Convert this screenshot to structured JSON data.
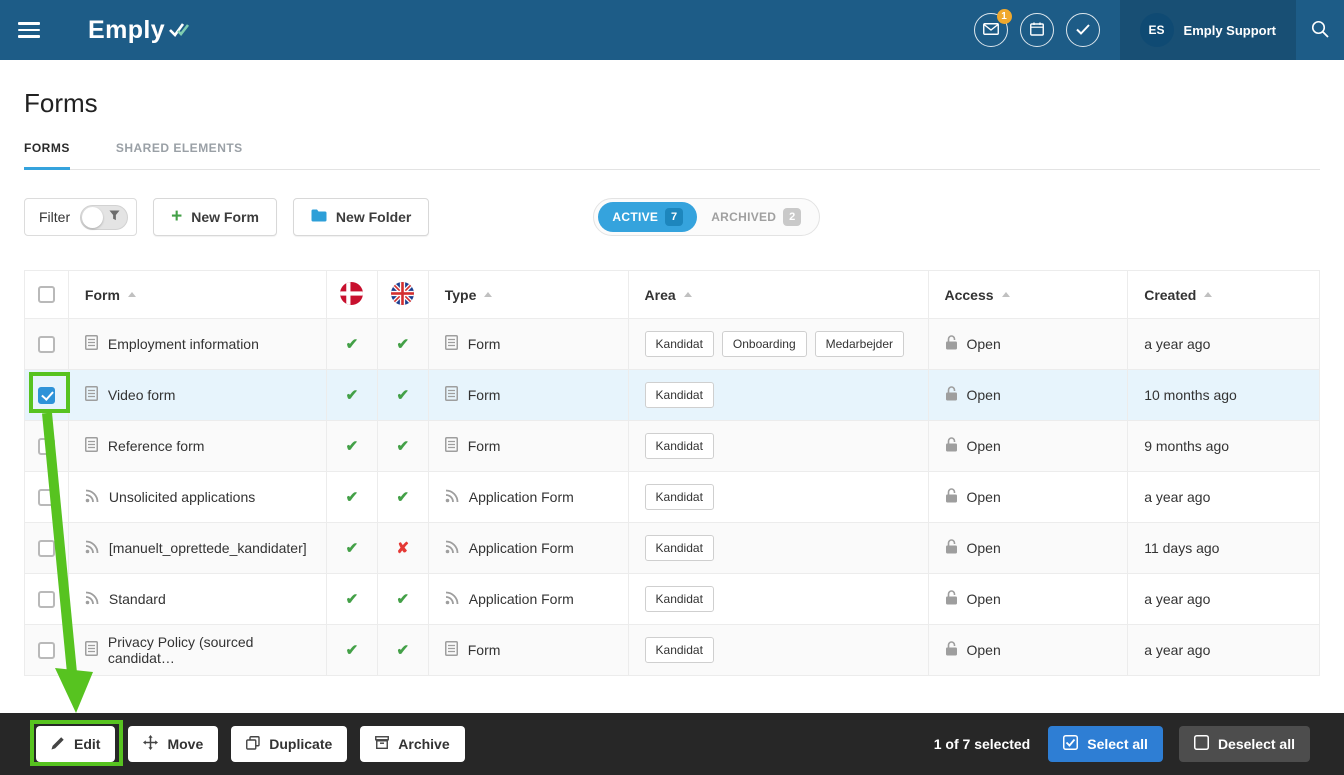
{
  "colors": {
    "navbar_blue": "#1d5c87",
    "accent_blue": "#35a3dd",
    "annotation_green": "#57c320"
  },
  "navbar": {
    "logo": "Emply",
    "mail_badge": "1",
    "user": {
      "initials": "ES",
      "name": "Emply Support"
    }
  },
  "page": {
    "title": "Forms",
    "tabs": [
      {
        "label": "FORMS",
        "active": true
      },
      {
        "label": "SHARED ELEMENTS",
        "active": false
      }
    ]
  },
  "toolbar": {
    "filter_label": "Filter",
    "new_form": "New Form",
    "new_folder": "New Folder",
    "active_label": "ACTIVE",
    "active_count": "7",
    "archived_label": "ARCHIVED",
    "archived_count": "2"
  },
  "table": {
    "headers": {
      "form": "Form",
      "type": "Type",
      "area": "Area",
      "access": "Access",
      "created": "Created"
    },
    "flag_columns": [
      "danish-flag",
      "british-flag"
    ],
    "rows": [
      {
        "name": "Employment information",
        "icon": "form",
        "da": true,
        "en": true,
        "type": "Form",
        "areas": [
          "Kandidat",
          "Onboarding",
          "Medarbejder"
        ],
        "access": "Open",
        "created": "a year ago",
        "selected": false
      },
      {
        "name": "Video form",
        "icon": "form",
        "da": true,
        "en": true,
        "type": "Form",
        "areas": [
          "Kandidat"
        ],
        "access": "Open",
        "created": "10 months ago",
        "selected": true
      },
      {
        "name": "Reference form",
        "icon": "form",
        "da": true,
        "en": true,
        "type": "Form",
        "areas": [
          "Kandidat"
        ],
        "access": "Open",
        "created": "9 months ago",
        "selected": false
      },
      {
        "name": "Unsolicited applications",
        "icon": "rss",
        "da": true,
        "en": true,
        "type": "Application Form",
        "areas": [
          "Kandidat"
        ],
        "access": "Open",
        "created": "a year ago",
        "selected": false
      },
      {
        "name": "[manuelt_oprettede_kandidater]",
        "icon": "rss",
        "da": true,
        "en": false,
        "type": "Application Form",
        "areas": [
          "Kandidat"
        ],
        "access": "Open",
        "created": "11 days ago",
        "selected": false
      },
      {
        "name": "Standard",
        "icon": "rss",
        "da": true,
        "en": true,
        "type": "Application Form",
        "areas": [
          "Kandidat"
        ],
        "access": "Open",
        "created": "a year ago",
        "selected": false
      },
      {
        "name": "Privacy Policy (sourced candidat…",
        "icon": "form",
        "da": true,
        "en": true,
        "type": "Form",
        "areas": [
          "Kandidat"
        ],
        "access": "Open",
        "created": "a year ago",
        "selected": false
      }
    ]
  },
  "footer": {
    "edit": "Edit",
    "move": "Move",
    "duplicate": "Duplicate",
    "archive": "Archive",
    "selection": "1 of 7 selected",
    "select_all": "Select all",
    "deselect_all": "Deselect all"
  }
}
